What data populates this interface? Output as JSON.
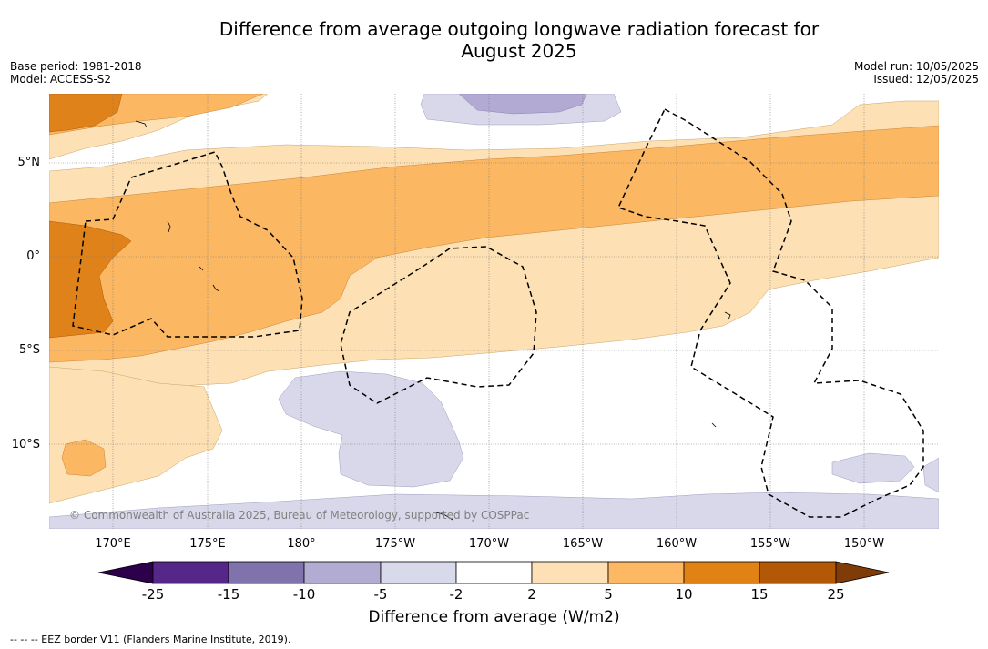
{
  "header": {
    "title_line1": "Difference from average outgoing longwave radiation forecast for",
    "title_line2": "August 2025",
    "base_period": "Base period: 1981-2018",
    "model": "Model: ACCESS-S2",
    "model_run": "Model run: 10/05/2025",
    "issued": "Issued: 12/05/2025"
  },
  "map": {
    "lat_labels": [
      "5°N",
      "0°",
      "5°S",
      "10°S"
    ],
    "lon_labels": [
      "170°E",
      "175°E",
      "180°",
      "175°W",
      "170°W",
      "165°W",
      "160°W",
      "155°W",
      "150°W"
    ],
    "copyright": "© Commonwealth of Australia 2025, Bureau of Meteorology, supported by COSPPac",
    "colors": {
      "neg_2_5": "#d8d8ea",
      "neg_5_10": "#b2aad2",
      "pos_2_5": "#fde0b4",
      "pos_5_10": "#fbb762",
      "pos_10_15": "#e0821a",
      "pos_15_25": "#b35806"
    }
  },
  "legend": {
    "title": "Difference from average (W/m2)",
    "ticks": [
      "-25",
      "-15",
      "-10",
      "-5",
      "-2",
      "2",
      "5",
      "10",
      "15",
      "25"
    ],
    "colors": [
      "#2d004b",
      "#542788",
      "#8073ac",
      "#b2abd2",
      "#d8daeb",
      "#ffffff",
      "#fee0b6",
      "#fdb863",
      "#e08214",
      "#b35806",
      "#7f3b08"
    ]
  },
  "footnote": "--  --  -- EEZ border V11 (Flanders Marine Institute, 2019)."
}
